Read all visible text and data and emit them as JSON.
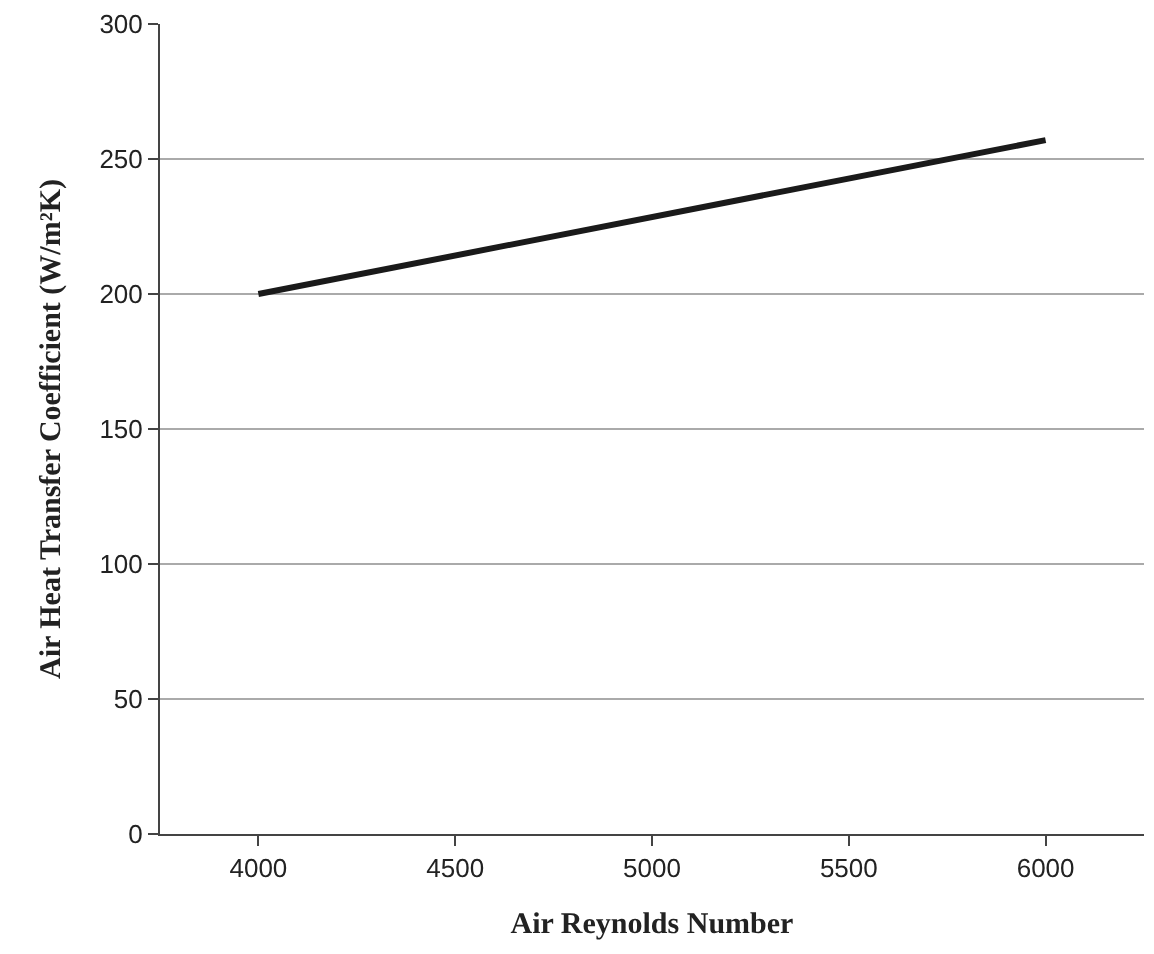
{
  "chart_data": {
    "type": "line",
    "xlabel": "Air Reynolds Number",
    "ylabel": "Air Heat Transfer Coefficient (W/m²K)",
    "x": [
      4000,
      6000
    ],
    "series": [
      {
        "color": "#1a1a1a",
        "values": [
          200,
          257
        ]
      }
    ],
    "xlim": [
      3750,
      6250
    ],
    "xticks": [
      4000,
      4500,
      5000,
      5500,
      6000
    ],
    "ylim": [
      0,
      300
    ],
    "yticks": [
      0,
      50,
      100,
      150,
      200,
      250,
      300
    ],
    "grid": "y",
    "marker": "none",
    "line_style": "solid"
  }
}
